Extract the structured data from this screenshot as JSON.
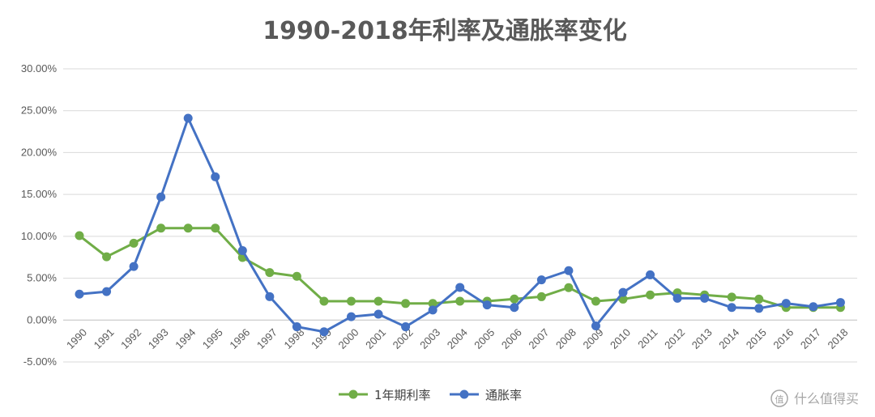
{
  "chart_data": {
    "type": "line",
    "title": "1990-2018年利率及通胀率变化",
    "categories": [
      "1990",
      "1991",
      "1992",
      "1993",
      "1994",
      "1995",
      "1996",
      "1997",
      "1998",
      "1999",
      "2000",
      "2001",
      "2002",
      "2003",
      "2004",
      "2005",
      "2006",
      "2007",
      "2008",
      "2009",
      "2010",
      "2011",
      "2012",
      "2013",
      "2014",
      "2015",
      "2016",
      "2017",
      "2018"
    ],
    "series": [
      {
        "name": "1年期利率",
        "color": "#70ad47",
        "values": [
          10.08,
          7.56,
          9.18,
          10.98,
          10.98,
          10.98,
          7.47,
          5.67,
          5.22,
          2.25,
          2.25,
          2.25,
          1.98,
          1.98,
          2.25,
          2.25,
          2.52,
          2.79,
          3.87,
          2.25,
          2.5,
          3.0,
          3.25,
          3.0,
          2.75,
          2.5,
          1.5,
          1.5,
          1.5
        ]
      },
      {
        "name": "通胀率",
        "color": "#4472c4",
        "values": [
          3.1,
          3.4,
          6.4,
          14.7,
          24.1,
          17.1,
          8.3,
          2.8,
          -0.8,
          -1.4,
          0.4,
          0.7,
          -0.8,
          1.2,
          3.9,
          1.8,
          1.5,
          4.8,
          5.9,
          -0.7,
          3.3,
          5.4,
          2.6,
          2.6,
          1.5,
          1.4,
          2.0,
          1.6,
          2.1
        ]
      }
    ],
    "ylim": [
      -5,
      30
    ],
    "yticks": [
      -5,
      0,
      5,
      10,
      15,
      20,
      25,
      30
    ],
    "ytick_labels": [
      "-5.00%",
      "0.00%",
      "5.00%",
      "10.00%",
      "15.00%",
      "20.00%",
      "25.00%",
      "30.00%"
    ],
    "grid": true,
    "legend_position": "bottom"
  },
  "watermark": {
    "text": "什么值得买",
    "logo_glyph": "值"
  }
}
